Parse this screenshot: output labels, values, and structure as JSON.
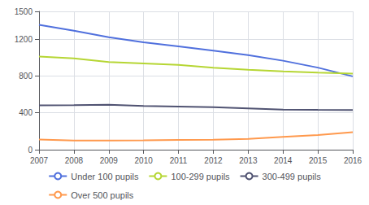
{
  "chart_data": {
    "type": "line",
    "x": [
      2007,
      2008,
      2009,
      2010,
      2011,
      2012,
      2013,
      2014,
      2015,
      2016
    ],
    "series": [
      {
        "name": "Under 100 pupils",
        "values": [
          1355,
          1290,
          1220,
          1165,
          1120,
          1075,
          1025,
          965,
          890,
          795
        ]
      },
      {
        "name": "100-299 pupils",
        "values": [
          1010,
          990,
          950,
          935,
          920,
          890,
          868,
          850,
          835,
          825
        ]
      },
      {
        "name": "300-499 pupils",
        "values": [
          480,
          482,
          488,
          475,
          468,
          462,
          448,
          435,
          432,
          430
        ]
      },
      {
        "name": "Over 500 pupils",
        "values": [
          110,
          100,
          100,
          102,
          105,
          108,
          118,
          138,
          158,
          190
        ]
      }
    ],
    "xlim": [
      2007,
      2016
    ],
    "xticks": [
      2007,
      2008,
      2009,
      2010,
      2011,
      2012,
      2013,
      2014,
      2015,
      2016
    ],
    "ylim": [
      0,
      1500
    ],
    "yticks": [
      0,
      400,
      800,
      1200,
      1500
    ],
    "grid": true,
    "legend": "bottom"
  }
}
